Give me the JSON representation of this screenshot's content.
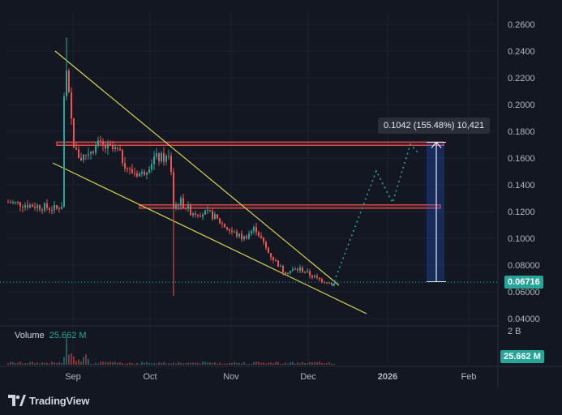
{
  "chart_data": {
    "type": "candlestick",
    "price_axis": {
      "ticks": [
        "0.2600",
        "0.2400",
        "0.2200",
        "0.2000",
        "0.1800",
        "0.1600",
        "0.1400",
        "0.1200",
        "0.1000",
        "0.08000",
        "0.06000",
        "0.04000"
      ],
      "ylim": [
        0.035,
        0.265
      ]
    },
    "time_axis": {
      "ticks": [
        "Sep",
        "Oct",
        "Nov",
        "Dec",
        "2026",
        "Feb"
      ]
    },
    "current_price": "0.06716",
    "volume_axis_tick": "2 B",
    "measure_label": "0.1042 (155.48%) 10,421",
    "volume_label": "Volume",
    "volume_value": "25.662 M",
    "volume_badge": "25.662 M",
    "resistance_zones": [
      {
        "y_low": 0.1695,
        "y_high": 0.172
      },
      {
        "y_low": 0.1225,
        "y_high": 0.125
      }
    ],
    "colors": {
      "up": "#26a69a",
      "down": "#ef5350",
      "trend": "#d4d44c",
      "projection": "#26a69a"
    }
  },
  "brand": {
    "name": "TradingView"
  }
}
